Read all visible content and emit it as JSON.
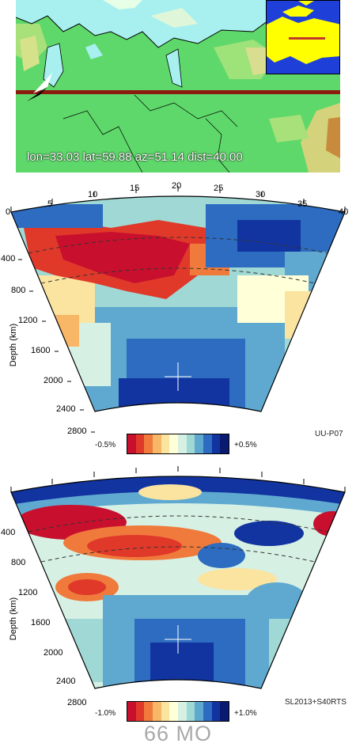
{
  "map": {
    "readout": "lon=33.03 lat=59.88 az=51.14 dist=40.00"
  },
  "section_axis": {
    "distance_ticks": [
      "0",
      "5",
      "10",
      "15",
      "20",
      "25",
      "30",
      "35",
      "40"
    ],
    "depth_title": "Depth (km)",
    "depth_ticks_top": [
      "400",
      "800",
      "1200",
      "1600",
      "2000",
      "2400",
      "2800"
    ],
    "depth_ticks_bottom": [
      "400",
      "800",
      "1200",
      "1600",
      "2000",
      "2400",
      "2800"
    ]
  },
  "models": {
    "top": {
      "name": "UU-P07",
      "cbar_min": "-0.5%",
      "cbar_max": "+0.5%"
    },
    "bottom": {
      "name": "SL2013+S40RTS",
      "cbar_min": "-1.0%",
      "cbar_max": "+1.0%"
    }
  },
  "colorbar_colors": [
    "#c8102e",
    "#e0392a",
    "#f07a3c",
    "#f7b767",
    "#fbe3a0",
    "#ffffd8",
    "#d6f1e4",
    "#9fd8d4",
    "#5fa9d0",
    "#2d6cc0",
    "#1234a0",
    "#0a1a6e"
  ],
  "footer": "66 MO"
}
